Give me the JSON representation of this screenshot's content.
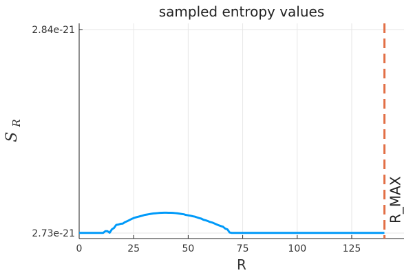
{
  "chart_data": {
    "type": "line",
    "title": "sampled entropy values",
    "xlabel": "R",
    "ylabel_main": "S",
    "ylabel_sub": "R",
    "xlim": [
      0,
      149
    ],
    "ylim": [
      2.73e-21,
      2.84e-21
    ],
    "x_ticks": [
      0,
      25,
      50,
      75,
      100,
      125
    ],
    "x_tick_labels": [
      "0",
      "25",
      "50",
      "75",
      "100",
      "125"
    ],
    "y_ticks": [
      2.73e-21,
      2.84e-21
    ],
    "y_tick_labels": [
      "2.73e-21",
      "2.84e-21"
    ],
    "grid": true,
    "legend": false,
    "series": [
      {
        "color": "#009af9",
        "x": [
          0,
          1,
          2,
          3,
          4,
          5,
          6,
          7,
          8,
          9,
          10,
          11,
          12,
          13,
          14,
          15,
          16,
          17,
          18,
          19,
          20,
          21,
          22,
          23,
          24,
          25,
          26,
          27,
          28,
          29,
          30,
          31,
          32,
          33,
          34,
          35,
          36,
          37,
          38,
          39,
          40,
          41,
          42,
          43,
          44,
          45,
          46,
          47,
          48,
          49,
          50,
          51,
          52,
          53,
          54,
          55,
          56,
          57,
          58,
          59,
          60,
          61,
          62,
          63,
          64,
          65,
          66,
          67,
          68,
          69,
          70,
          71,
          72,
          73,
          74,
          75,
          76,
          77,
          78,
          79,
          80,
          81,
          82,
          83,
          84,
          85,
          86,
          87,
          88,
          89,
          90,
          91,
          92,
          93,
          94,
          95,
          96,
          97,
          98,
          99,
          100,
          101,
          102,
          103,
          104,
          105,
          106,
          107,
          108,
          109,
          110,
          111,
          112,
          113,
          114,
          115,
          116,
          117,
          118,
          119,
          120,
          121,
          122,
          123,
          124,
          125,
          126,
          127,
          128,
          129,
          130,
          131,
          132,
          133,
          134,
          135,
          136,
          137,
          138,
          139,
          140
        ],
        "y": [
          2.7301e-21,
          2.7301e-21,
          2.7301e-21,
          2.7301e-21,
          2.7301e-21,
          2.7301e-21,
          2.7301e-21,
          2.7301e-21,
          2.7301e-21,
          2.7301e-21,
          2.7301e-21,
          2.7301e-21,
          2.731e-21,
          2.731e-21,
          2.7302e-21,
          2.732e-21,
          2.7328e-21,
          2.7344e-21,
          2.7346e-21,
          2.735e-21,
          2.7351e-21,
          2.7359e-21,
          2.7364e-21,
          2.737e-21,
          2.7376e-21,
          2.7381e-21,
          2.7385e-21,
          2.7388e-21,
          2.7391e-21,
          2.7394e-21,
          2.7398e-21,
          2.74e-21,
          2.7402e-21,
          2.7404e-21,
          2.7406e-21,
          2.7407e-21,
          2.7408e-21,
          2.7409e-21,
          2.74095e-21,
          2.741e-21,
          2.741e-21,
          2.74095e-21,
          2.74095e-21,
          2.7409e-21,
          2.7408e-21,
          2.7407e-21,
          2.7405e-21,
          2.7403e-21,
          2.74015e-21,
          2.7398e-21,
          2.7396e-21,
          2.7394e-21,
          2.7391e-21,
          2.7389e-21,
          2.7385e-21,
          2.7381e-21,
          2.7378e-21,
          2.7372e-21,
          2.7369e-21,
          2.7365e-21,
          2.736e-21,
          2.7357e-21,
          2.7352e-21,
          2.7347e-21,
          2.7342e-21,
          2.7338e-21,
          2.7334e-21,
          2.7324e-21,
          2.732e-21,
          2.7303e-21,
          2.7301e-21,
          2.7301e-21,
          2.7301e-21,
          2.7301e-21,
          2.7301e-21,
          2.7301e-21,
          2.7301e-21,
          2.7301e-21,
          2.7301e-21,
          2.7301e-21,
          2.7301e-21,
          2.7301e-21,
          2.7301e-21,
          2.7301e-21,
          2.7301e-21,
          2.7301e-21,
          2.7301e-21,
          2.7301e-21,
          2.7301e-21,
          2.7301e-21,
          2.7301e-21,
          2.7301e-21,
          2.7301e-21,
          2.7301e-21,
          2.7301e-21,
          2.7301e-21,
          2.7301e-21,
          2.7301e-21,
          2.7301e-21,
          2.7301e-21,
          2.7301e-21,
          2.7301e-21,
          2.7301e-21,
          2.7301e-21,
          2.7301e-21,
          2.7301e-21,
          2.7301e-21,
          2.7301e-21,
          2.7301e-21,
          2.7301e-21,
          2.7301e-21,
          2.7301e-21,
          2.7301e-21,
          2.7301e-21,
          2.7301e-21,
          2.7301e-21,
          2.7301e-21,
          2.7301e-21,
          2.7301e-21,
          2.7301e-21,
          2.7301e-21,
          2.7301e-21,
          2.7301e-21,
          2.7301e-21,
          2.7301e-21,
          2.7301e-21,
          2.7301e-21,
          2.7301e-21,
          2.7301e-21,
          2.7301e-21,
          2.7301e-21,
          2.7301e-21,
          2.7301e-21,
          2.7301e-21,
          2.7301e-21,
          2.7301e-21,
          2.7301e-21,
          2.7301e-21,
          2.7301e-21,
          2.7301e-21,
          2.7301e-21
        ]
      }
    ],
    "vline": {
      "x": 140,
      "label": "R_MAX",
      "color": "#e26f46",
      "style": "dashed"
    }
  }
}
